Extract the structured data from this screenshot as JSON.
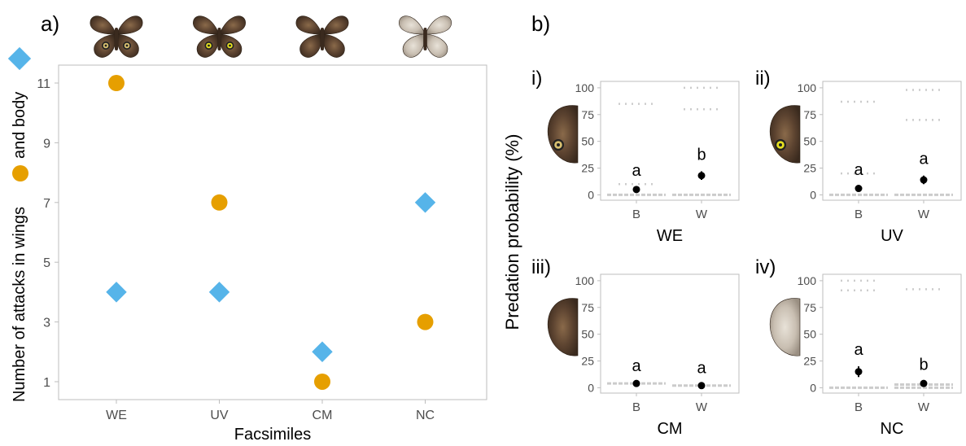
{
  "panel_a": {
    "label": "a)",
    "ylabel_parts": [
      "Number of attacks in wings",
      "and body"
    ],
    "chart_data": {
      "type": "scatter",
      "xlabel": "Facsimiles",
      "categories": [
        "WE",
        "UV",
        "CM",
        "NC"
      ],
      "yticks": [
        1,
        3,
        5,
        7,
        9,
        11
      ],
      "ylim": [
        0.4,
        11.6
      ],
      "series": [
        {
          "marker": "diamond",
          "color": "#56B4E9",
          "values": [
            4,
            4,
            2,
            7
          ]
        },
        {
          "marker": "circle",
          "color": "#E69F00",
          "values": [
            11,
            7,
            1,
            3
          ]
        }
      ],
      "grid": false
    }
  },
  "panel_b": {
    "label": "b)",
    "ylabel": "Predation probability (%)",
    "yticks": [
      0,
      25,
      50,
      75,
      100
    ],
    "ylim": [
      -5,
      106
    ],
    "subplots": [
      {
        "roman": "i)",
        "xlabel": "WE",
        "categories": [
          "B",
          "W"
        ],
        "means": [
          5,
          18
        ],
        "err": [
          [
            3,
            7
          ],
          [
            14,
            22
          ]
        ],
        "letters": [
          "a",
          "b"
        ],
        "raw": [
          [
            0,
            10,
            85
          ],
          [
            0,
            80,
            100
          ]
        ]
      },
      {
        "roman": "ii)",
        "xlabel": "UV",
        "categories": [
          "B",
          "W"
        ],
        "means": [
          6,
          14
        ],
        "err": [
          [
            4,
            8
          ],
          [
            10,
            18
          ]
        ],
        "letters": [
          "a",
          "a"
        ],
        "raw": [
          [
            0,
            20,
            87
          ],
          [
            0,
            70,
            98
          ]
        ]
      },
      {
        "roman": "iii)",
        "xlabel": "CM",
        "categories": [
          "B",
          "W"
        ],
        "means": [
          4,
          2
        ],
        "err": [
          [
            3,
            5
          ],
          [
            1,
            3
          ]
        ],
        "letters": [
          "a",
          "a"
        ],
        "raw": [
          [
            4
          ],
          [
            2
          ]
        ]
      },
      {
        "roman": "iv)",
        "xlabel": "NC",
        "categories": [
          "B",
          "W"
        ],
        "means": [
          15,
          4
        ],
        "err": [
          [
            10,
            20
          ],
          [
            2,
            6
          ]
        ],
        "letters": [
          "a",
          "b"
        ],
        "raw": [
          [
            0,
            91,
            100
          ],
          [
            0,
            3,
            92
          ]
        ]
      }
    ]
  },
  "colors": {
    "diamond": "#56B4E9",
    "circle": "#E69F00",
    "raw_points": "#cccccc",
    "axis": "#bdbdbd",
    "tick_text": "#4d4d4d",
    "text": "#000000"
  },
  "icons": [
    "butterfly-full-eyespot",
    "butterfly-full-uv-eyespot",
    "butterfly-full-no-eyespot",
    "butterfly-full-pale",
    "butterfly-wing"
  ]
}
